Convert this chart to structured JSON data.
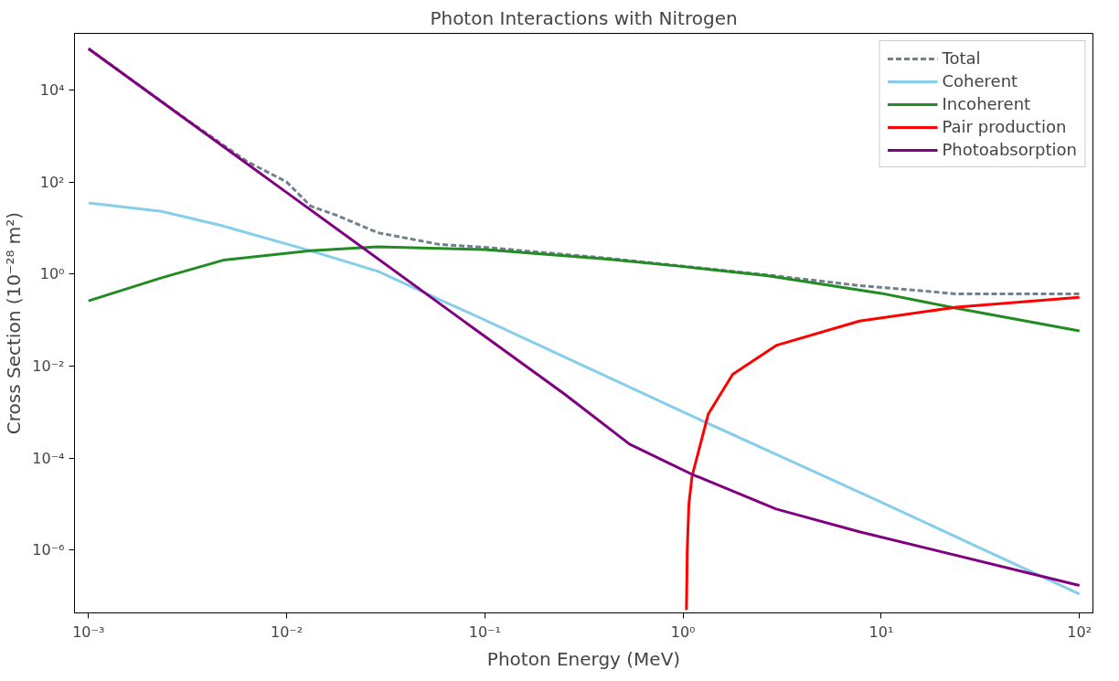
{
  "chart_data": {
    "type": "line",
    "title": "Photon Interactions with Nitrogen",
    "xlabel": "Photon Energy (MeV)",
    "ylabel": "Cross Section (10⁻²⁸ m²)",
    "log": "xy",
    "grid": false,
    "legend": "top right",
    "xlim": [
      0.00085,
      117
    ],
    "ylim": [
      4.3e-08,
      170000
    ],
    "xticks": [
      {
        "value": 0.001,
        "label": "10⁻³"
      },
      {
        "value": 0.01,
        "label": "10⁻²"
      },
      {
        "value": 0.1,
        "label": "10⁻¹"
      },
      {
        "value": 1,
        "label": "10⁰"
      },
      {
        "value": 10,
        "label": "10¹"
      },
      {
        "value": 100,
        "label": "10²"
      }
    ],
    "yticks": [
      {
        "value": 1e-06,
        "label": "10⁻⁶"
      },
      {
        "value": 0.0001,
        "label": "10⁻⁴"
      },
      {
        "value": 0.01,
        "label": "10⁻²"
      },
      {
        "value": 1,
        "label": "10⁰"
      },
      {
        "value": 100,
        "label": "10²"
      },
      {
        "value": 10000,
        "label": "10⁴"
      }
    ],
    "series": [
      {
        "name": "Total",
        "color": "#708090",
        "line_style": "dashed",
        "x": [
          0.001,
          0.00316,
          0.0063,
          0.01,
          0.0132,
          0.0178,
          0.0288,
          0.0589,
          0.1,
          0.417,
          1,
          2.69,
          7.76,
          24,
          100
        ],
        "values": [
          79000,
          2200,
          280,
          100,
          30,
          19,
          7.9,
          4.4,
          3.8,
          2.2,
          1.48,
          0.95,
          0.56,
          0.37,
          0.37
        ]
      },
      {
        "name": "Coherent",
        "color": "#87ceeb",
        "x": [
          0.001,
          0.00234,
          0.00479,
          0.0132,
          0.0288,
          0.0589,
          0.1,
          1,
          10,
          100
        ],
        "values": [
          35,
          23,
          11,
          3.2,
          1.15,
          0.28,
          0.1,
          0.001,
          1.1e-05,
          1.1e-07
        ]
      },
      {
        "name": "Incoherent",
        "color": "#228b22",
        "x": [
          0.001,
          0.00234,
          0.00479,
          0.0132,
          0.0288,
          0.1,
          0.417,
          1,
          2.69,
          10,
          24,
          100
        ],
        "values": [
          0.26,
          0.83,
          2.0,
          3.2,
          3.9,
          3.4,
          2.1,
          1.45,
          0.91,
          0.38,
          0.18,
          0.058
        ]
      },
      {
        "name": "Pair production",
        "color": "#ff0000",
        "x": [
          1.04,
          1.05,
          1.07,
          1.11,
          1.34,
          1.78,
          2.95,
          7.76,
          24,
          100
        ],
        "values": [
          5e-08,
          1e-06,
          1e-05,
          4e-05,
          0.0009,
          0.0066,
          0.028,
          0.095,
          0.19,
          0.31
        ]
      },
      {
        "name": "Photoabsorption",
        "color": "#800080",
        "x": [
          0.001,
          0.01,
          0.1,
          0.251,
          0.537,
          1.1,
          2.95,
          7.76,
          100
        ],
        "values": [
          79000,
          59,
          0.044,
          0.0025,
          0.0002,
          4.5e-05,
          7.8e-06,
          2.5e-06,
          1.7e-07
        ]
      }
    ]
  }
}
